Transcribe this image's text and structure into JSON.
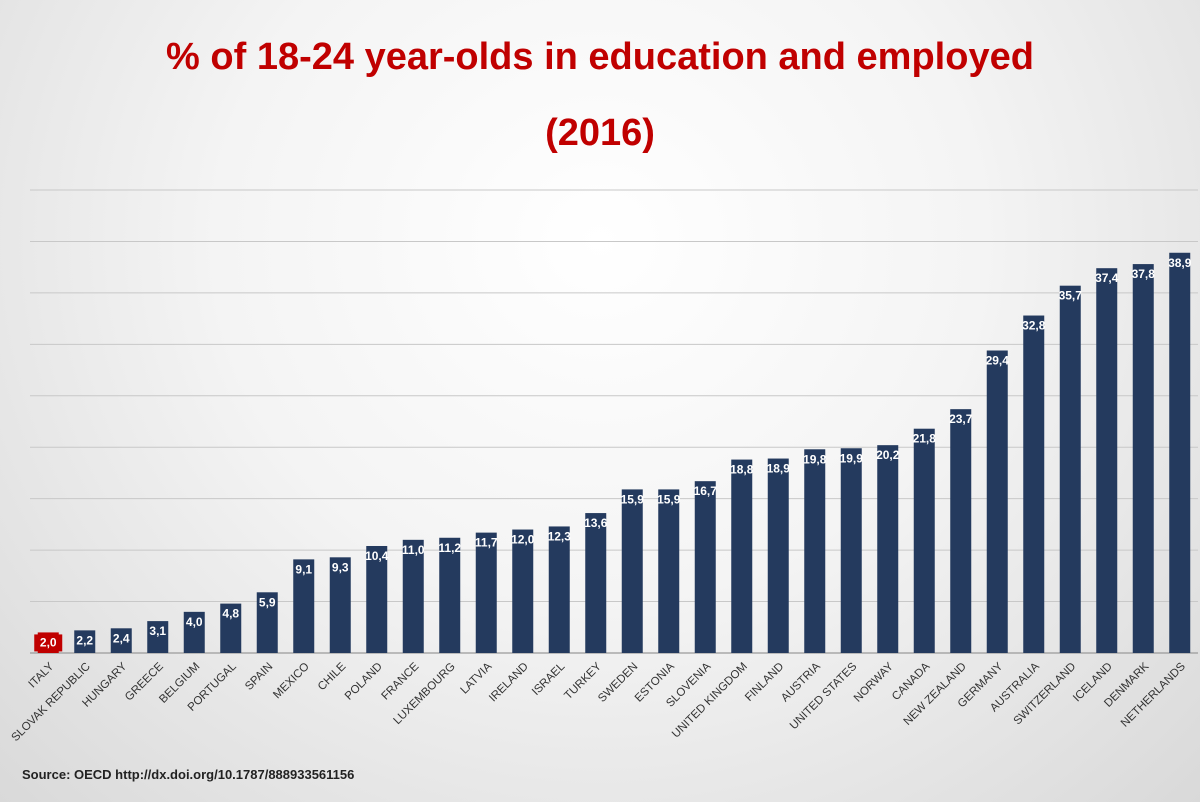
{
  "chart_data": {
    "type": "bar",
    "title_line1": "% of 18-24 year-olds in education and employed",
    "title_line2": "(2016)",
    "categories": [
      "ITALY",
      "SLOVAK REPUBLIC",
      "HUNGARY",
      "GREECE",
      "BELGIUM",
      "PORTUGAL",
      "SPAIN",
      "MEXICO",
      "CHILE",
      "POLAND",
      "FRANCE",
      "LUXEMBOURG",
      "LATVIA",
      "IRELAND",
      "ISRAEL",
      "TURKEY",
      "SWEDEN",
      "ESTONIA",
      "SLOVENIA",
      "UNITED KINGDOM",
      "FINLAND",
      "AUSTRIA",
      "UNITED STATES",
      "NORWAY",
      "CANADA",
      "NEW ZEALAND",
      "GERMANY",
      "AUSTRALIA",
      "SWITZERLAND",
      "ICELAND",
      "DENMARK",
      "NETHERLANDS"
    ],
    "values": [
      2.0,
      2.2,
      2.4,
      3.1,
      4.0,
      4.8,
      5.9,
      9.1,
      9.3,
      10.4,
      11.0,
      11.2,
      11.7,
      12.0,
      12.3,
      13.6,
      15.9,
      15.9,
      16.7,
      18.8,
      18.9,
      19.8,
      19.9,
      20.2,
      21.8,
      23.7,
      29.4,
      32.8,
      35.7,
      37.4,
      37.8,
      38.9
    ],
    "data_labels": [
      "2,0",
      "2,2",
      "2,4",
      "3,1",
      "4,0",
      "4,8",
      "5,9",
      "9,1",
      "9,3",
      "10,4",
      "11,0",
      "11,2",
      "11,7",
      "12,0",
      "12,3",
      "13,6",
      "15,9",
      "15,9",
      "16,7",
      "18,8",
      "18,9",
      "19,8",
      "19,9",
      "20,2",
      "21,8",
      "23,7",
      "29,4",
      "32,8",
      "35,7",
      "37,4",
      "37,8",
      "38,9"
    ],
    "highlight_category": "ITALY",
    "ylim": [
      0,
      45
    ],
    "grid_step": 5,
    "grid": true,
    "colors": {
      "bar": "#243a5e",
      "highlight": "#c00000",
      "title": "#c00000",
      "grid": "#c8c8c8"
    }
  },
  "source": "Source: OECD  http://dx.doi.org/10.1787/888933561156"
}
